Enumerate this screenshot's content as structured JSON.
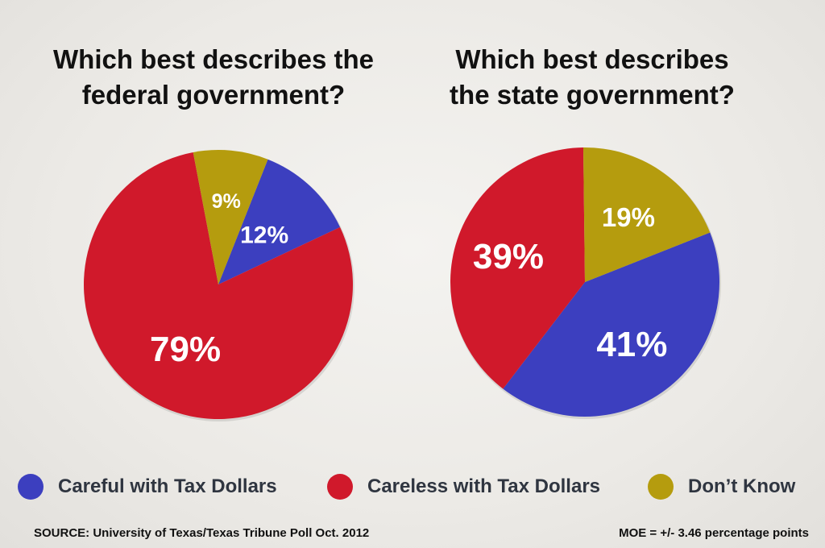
{
  "colors": {
    "careful": "#3c3fbf",
    "careless": "#d0192b",
    "dont_know": "#b59c0e",
    "label_text": "#ffffff"
  },
  "chart_data": [
    {
      "type": "pie",
      "title": "Which best describes the federal government?",
      "title_lines": [
        "Which best describes the",
        "federal government?"
      ],
      "slices": [
        {
          "label": "Careful with Tax Dollars",
          "value": 12,
          "display": "12%",
          "color": "#3c3fbf"
        },
        {
          "label": "Careless with Tax Dollars",
          "value": 79,
          "display": "79%",
          "color": "#d0192b"
        },
        {
          "label": "Don’t Know",
          "value": 9,
          "display": "9%",
          "color": "#b59c0e"
        }
      ]
    },
    {
      "type": "pie",
      "title": "Which best describes the state government?",
      "title_lines": [
        "Which best describes",
        "the state government?"
      ],
      "slices": [
        {
          "label": "Careful with Tax Dollars",
          "value": 41,
          "display": "41%",
          "color": "#3c3fbf"
        },
        {
          "label": "Careless with Tax Dollars",
          "value": 39,
          "display": "39%",
          "color": "#d0192b"
        },
        {
          "label": "Don’t Know",
          "value": 19,
          "display": "19%",
          "color": "#b59c0e"
        }
      ]
    }
  ],
  "legend": [
    {
      "label": "Careful with Tax Dollars",
      "color": "#3c3fbf"
    },
    {
      "label": "Careless with Tax Dollars",
      "color": "#d0192b"
    },
    {
      "label": "Don’t Know",
      "color": "#b59c0e"
    }
  ],
  "footer": {
    "source": "SOURCE: University of Texas/Texas Tribune Poll Oct. 2012",
    "moe": "MOE = +/- 3.46 percentage points"
  }
}
